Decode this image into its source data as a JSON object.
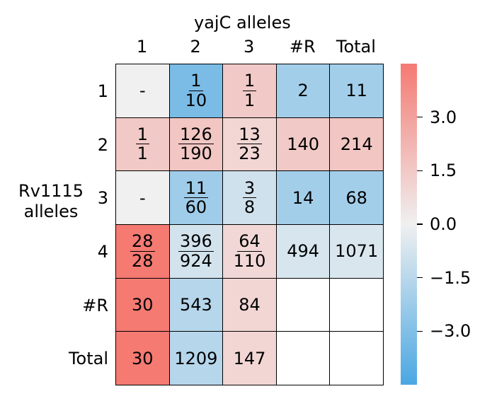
{
  "chart_data": {
    "type": "heatmap",
    "xlabel": "yajC alleles",
    "ylabel_lines": [
      "Rv1115",
      "alleles"
    ],
    "col_labels": [
      "1",
      "2",
      "3",
      "#R",
      "Total"
    ],
    "row_labels": [
      "1",
      "2",
      "3",
      "4",
      "#R",
      "Total"
    ],
    "cells": [
      [
        {
          "text": "-",
          "v": null
        },
        {
          "num": "1",
          "den": "10",
          "v": -3.2
        },
        {
          "num": "1",
          "den": "1",
          "v": 1.5
        },
        {
          "text": "2",
          "v": -2.1
        },
        {
          "text": "11",
          "v": -2.1
        }
      ],
      [
        {
          "num": "1",
          "den": "1",
          "v": 1.5
        },
        {
          "num": "126",
          "den": "190",
          "v": 1.6
        },
        {
          "num": "13",
          "den": "23",
          "v": 1.0
        },
        {
          "text": "140",
          "v": 1.5
        },
        {
          "text": "214",
          "v": 1.6
        }
      ],
      [
        {
          "text": "-",
          "v": null
        },
        {
          "num": "11",
          "den": "60",
          "v": -2.2
        },
        {
          "num": "3",
          "den": "8",
          "v": -0.9
        },
        {
          "text": "14",
          "v": -2.1
        },
        {
          "text": "68",
          "v": -2.1
        }
      ],
      [
        {
          "num": "28",
          "den": "28",
          "v": 4.5
        },
        {
          "num": "396",
          "den": "924",
          "v": -0.8
        },
        {
          "num": "64",
          "den": "110",
          "v": 0.9
        },
        {
          "text": "494",
          "v": -0.7
        },
        {
          "text": "1071",
          "v": -0.6
        }
      ],
      [
        {
          "text": "30",
          "v": 4.5
        },
        {
          "text": "543",
          "v": -1.6
        },
        {
          "text": "84",
          "v": 1.0
        },
        {
          "text": "",
          "v": "blank"
        },
        {
          "text": "",
          "v": "blank"
        }
      ],
      [
        {
          "text": "30",
          "v": 4.5
        },
        {
          "text": "1209",
          "v": -1.6
        },
        {
          "text": "147",
          "v": 1.0
        },
        {
          "text": "",
          "v": "blank"
        },
        {
          "text": "",
          "v": "blank"
        }
      ]
    ],
    "colorbar": {
      "vmin": -4.5,
      "vmax": 4.5,
      "ticks": [
        3.0,
        1.5,
        0.0,
        -1.5,
        -3.0
      ],
      "tick_labels": [
        "3.0",
        "1.5",
        "0.0",
        "−1.5",
        "−3.0"
      ],
      "colors": {
        "positive": "#f47a72",
        "neutral": "#f0f0f0",
        "negative": "#4aa7e2",
        "missing": "#f0f0f0",
        "blank": "#ffffff"
      }
    }
  }
}
